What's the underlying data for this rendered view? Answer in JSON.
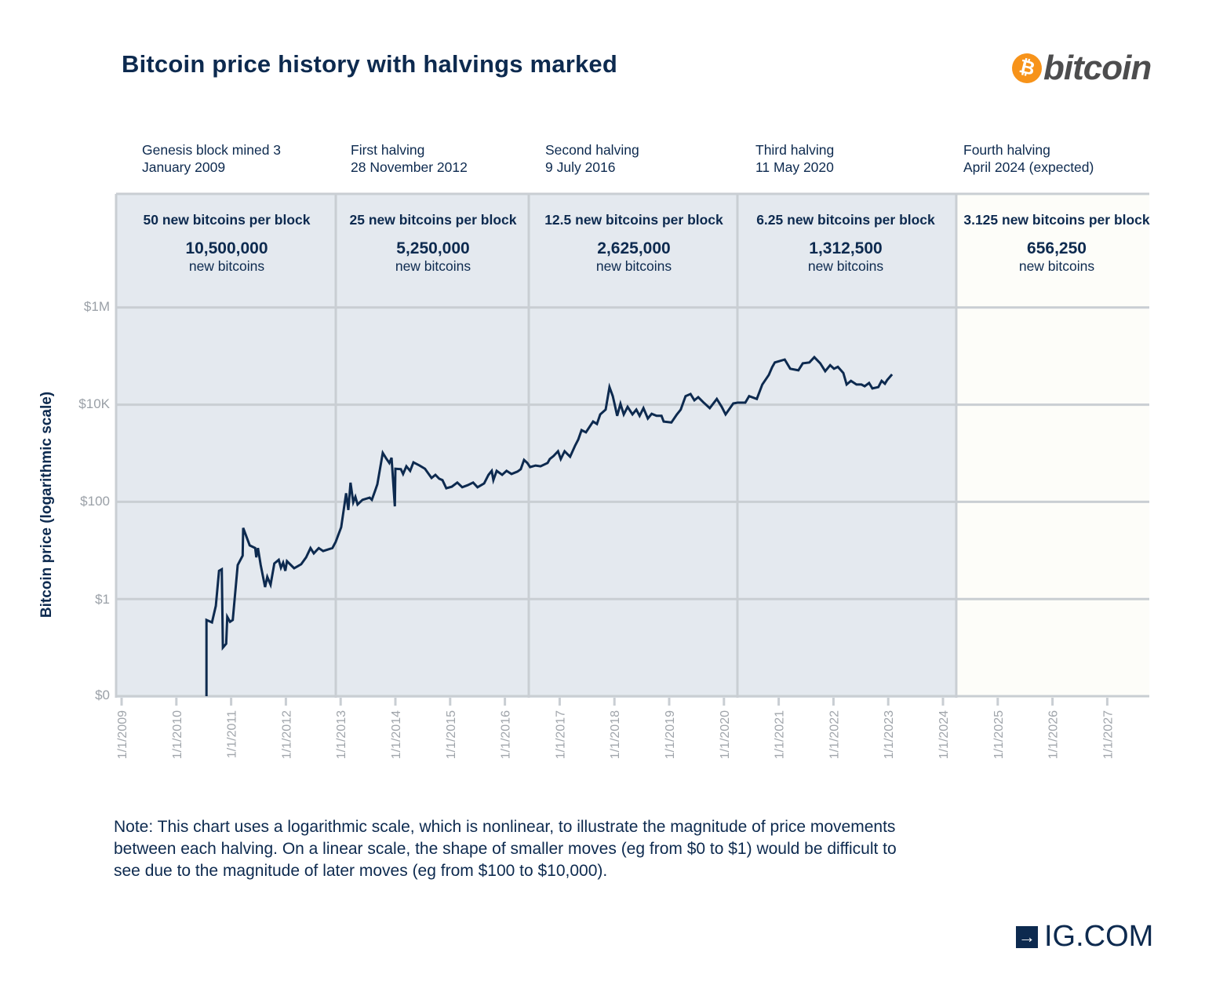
{
  "title": "Bitcoin price history with halvings marked",
  "logos": {
    "bitcoin": "bitcoin",
    "bitcoin_symbol": "₿",
    "ig": "IG.COM"
  },
  "halvings": [
    {
      "line1": "Genesis block mined 3",
      "line2": "January 2009",
      "reward": "50 new bitcoins per block",
      "new_coins": "10,500,000",
      "new_label": "new bitcoins"
    },
    {
      "line1": "First halving",
      "line2": "28 November 2012",
      "reward": "25 new bitcoins per block",
      "new_coins": "5,250,000",
      "new_label": "new bitcoins"
    },
    {
      "line1": "Second halving",
      "line2": "9 July 2016",
      "reward": "12.5 new bitcoins per block",
      "new_coins": "2,625,000",
      "new_label": "new bitcoins"
    },
    {
      "line1": "Third halving",
      "line2": "11 May 2020",
      "reward": "6.25 new bitcoins per block",
      "new_coins": "1,312,500",
      "new_label": "new bitcoins"
    },
    {
      "line1": "Fourth halving",
      "line2": "April 2024 (expected)",
      "reward": "3.125 new bitcoins per block",
      "new_coins": "656,250",
      "new_label": "new bitcoins"
    }
  ],
  "note": "Note: This chart uses a logarithmic scale, which is nonlinear, to illustrate the magnitude of price movements between each halving. On a linear scale, the shape of smaller moves (eg from $0 to $1) would be difficult to see due to the magnitude of later moves (eg from $100 to $10,000).",
  "colors": {
    "line": "#0d2a4f",
    "shade": "#e4e9ef",
    "future": "#fdfdf9",
    "grid": "#c9ced3",
    "bitcoin_orange": "#f7931a"
  },
  "chart_data": {
    "type": "line",
    "title": "Bitcoin price history with halvings marked",
    "xlabel": "",
    "ylabel": "Bitcoin price (logarithmic scale)",
    "yscale": "log",
    "ylim": [
      0.01,
      1000000
    ],
    "xlim": [
      2009,
      2027
    ],
    "yticks": [
      {
        "value": 0.01,
        "label": "$0"
      },
      {
        "value": 1,
        "label": "$1"
      },
      {
        "value": 100,
        "label": "$100"
      },
      {
        "value": 10000,
        "label": "$10K"
      },
      {
        "value": 1000000,
        "label": "$1M"
      }
    ],
    "xticks": [
      {
        "value": 2009,
        "label": "1/1/2009"
      },
      {
        "value": 2010,
        "label": "1/1/2010"
      },
      {
        "value": 2011,
        "label": "1/1/2011"
      },
      {
        "value": 2012,
        "label": "1/1/2012"
      },
      {
        "value": 2013,
        "label": "1/1/2013"
      },
      {
        "value": 2014,
        "label": "1/1/2014"
      },
      {
        "value": 2015,
        "label": "1/1/2015"
      },
      {
        "value": 2016,
        "label": "1/1/2016"
      },
      {
        "value": 2017,
        "label": "1/1/2017"
      },
      {
        "value": 2018,
        "label": "1/1/2018"
      },
      {
        "value": 2019,
        "label": "1/1/2019"
      },
      {
        "value": 2020,
        "label": "1/1/2020"
      },
      {
        "value": 2021,
        "label": "1/1/2021"
      },
      {
        "value": 2022,
        "label": "1/1/2022"
      },
      {
        "value": 2023,
        "label": "1/1/2023"
      },
      {
        "value": 2024,
        "label": "1/1/2024"
      },
      {
        "value": 2025,
        "label": "1/1/2025"
      },
      {
        "value": 2026,
        "label": "1/1/2026"
      },
      {
        "value": 2027,
        "label": "1/1/2027"
      }
    ],
    "halving_dates": [
      2009.0,
      2012.91,
      2016.52,
      2020.36,
      2024.3
    ],
    "grid": true,
    "series": [
      {
        "name": "Bitcoin price (USD)",
        "points": [
          [
            2010.55,
            0.01
          ],
          [
            2010.55,
            0.37
          ],
          [
            2010.65,
            0.33
          ],
          [
            2010.72,
            0.72
          ],
          [
            2010.78,
            3.8
          ],
          [
            2010.83,
            4.1
          ],
          [
            2010.85,
            0.1
          ],
          [
            2010.91,
            0.12
          ],
          [
            2010.93,
            0.43
          ],
          [
            2010.98,
            0.34
          ],
          [
            2011.03,
            0.37
          ],
          [
            2011.12,
            5
          ],
          [
            2011.21,
            7.8
          ],
          [
            2011.22,
            29
          ],
          [
            2011.34,
            12.7
          ],
          [
            2011.44,
            11.2
          ],
          [
            2011.46,
            7.2
          ],
          [
            2011.49,
            11.2
          ],
          [
            2011.54,
            5
          ],
          [
            2011.62,
            1.76
          ],
          [
            2011.66,
            2.85
          ],
          [
            2011.72,
            1.97
          ],
          [
            2011.79,
            5.4
          ],
          [
            2011.87,
            6.4
          ],
          [
            2011.91,
            4.4
          ],
          [
            2011.95,
            5.6
          ],
          [
            2011.99,
            3.8
          ],
          [
            2012.02,
            6
          ],
          [
            2012.15,
            4.3
          ],
          [
            2012.28,
            5.2
          ],
          [
            2012.37,
            7.2
          ],
          [
            2012.45,
            11.2
          ],
          [
            2012.51,
            8.7
          ],
          [
            2012.6,
            11.2
          ],
          [
            2012.68,
            9.7
          ],
          [
            2012.85,
            11.2
          ],
          [
            2012.91,
            15
          ],
          [
            2013.01,
            30
          ],
          [
            2013.1,
            150
          ],
          [
            2013.14,
            68
          ],
          [
            2013.18,
            248
          ],
          [
            2013.23,
            98
          ],
          [
            2013.27,
            127
          ],
          [
            2013.31,
            88
          ],
          [
            2013.4,
            110
          ],
          [
            2013.53,
            122
          ],
          [
            2013.57,
            110
          ],
          [
            2013.63,
            170
          ],
          [
            2013.67,
            230
          ],
          [
            2013.77,
            1020
          ],
          [
            2013.83,
            790
          ],
          [
            2013.89,
            630
          ],
          [
            2013.93,
            810
          ],
          [
            2013.99,
            81
          ],
          [
            2014.0,
            480
          ],
          [
            2014.1,
            470
          ],
          [
            2014.14,
            375
          ],
          [
            2014.2,
            540
          ],
          [
            2014.27,
            435
          ],
          [
            2014.33,
            650
          ],
          [
            2014.44,
            560
          ],
          [
            2014.54,
            480
          ],
          [
            2014.66,
            310
          ],
          [
            2014.73,
            360
          ],
          [
            2014.8,
            300
          ],
          [
            2014.86,
            280
          ],
          [
            2014.93,
            190
          ],
          [
            2015.03,
            205
          ],
          [
            2015.13,
            250
          ],
          [
            2015.22,
            200
          ],
          [
            2015.32,
            220
          ],
          [
            2015.42,
            250
          ],
          [
            2015.5,
            200
          ],
          [
            2015.62,
            240
          ],
          [
            2015.7,
            360
          ],
          [
            2015.76,
            435
          ],
          [
            2015.79,
            280
          ],
          [
            2015.85,
            435
          ],
          [
            2015.95,
            360
          ],
          [
            2016.03,
            435
          ],
          [
            2016.12,
            375
          ],
          [
            2016.23,
            420
          ],
          [
            2016.29,
            470
          ],
          [
            2016.35,
            730
          ],
          [
            2016.41,
            630
          ],
          [
            2016.46,
            520
          ],
          [
            2016.56,
            560
          ],
          [
            2016.65,
            540
          ],
          [
            2016.78,
            630
          ],
          [
            2016.82,
            760
          ],
          [
            2016.89,
            880
          ],
          [
            2016.97,
            1100
          ],
          [
            2017.02,
            760
          ],
          [
            2017.09,
            1100
          ],
          [
            2017.19,
            850
          ],
          [
            2017.28,
            1420
          ],
          [
            2017.34,
            1920
          ],
          [
            2017.4,
            3000
          ],
          [
            2017.48,
            2700
          ],
          [
            2017.61,
            4500
          ],
          [
            2017.68,
            4000
          ],
          [
            2017.74,
            6300
          ],
          [
            2017.84,
            7900
          ],
          [
            2017.91,
            23000
          ],
          [
            2017.97,
            15000
          ],
          [
            2018.01,
            9500
          ],
          [
            2018.05,
            5900
          ],
          [
            2018.11,
            10400
          ],
          [
            2018.17,
            6300
          ],
          [
            2018.24,
            9000
          ],
          [
            2018.33,
            6300
          ],
          [
            2018.4,
            7900
          ],
          [
            2018.46,
            5900
          ],
          [
            2018.53,
            8500
          ],
          [
            2018.61,
            5200
          ],
          [
            2018.68,
            6500
          ],
          [
            2018.77,
            5900
          ],
          [
            2018.86,
            5900
          ],
          [
            2018.9,
            4500
          ],
          [
            2019.04,
            4300
          ],
          [
            2019.14,
            6300
          ],
          [
            2019.21,
            7900
          ],
          [
            2019.3,
            15000
          ],
          [
            2019.39,
            16600
          ],
          [
            2019.46,
            12300
          ],
          [
            2019.53,
            14300
          ],
          [
            2019.62,
            11300
          ],
          [
            2019.74,
            8500
          ],
          [
            2019.87,
            13100
          ],
          [
            2019.96,
            9000
          ],
          [
            2020.03,
            6300
          ],
          [
            2020.17,
            10600
          ],
          [
            2020.25,
            11000
          ],
          [
            2020.39,
            11000
          ],
          [
            2020.46,
            15000
          ],
          [
            2020.6,
            13100
          ],
          [
            2020.7,
            26000
          ],
          [
            2020.82,
            41000
          ],
          [
            2020.88,
            59000
          ],
          [
            2020.93,
            74000
          ],
          [
            2021.11,
            85000
          ],
          [
            2021.21,
            55000
          ],
          [
            2021.36,
            51000
          ],
          [
            2021.44,
            71000
          ],
          [
            2021.56,
            74000
          ],
          [
            2021.65,
            95000
          ],
          [
            2021.76,
            71000
          ],
          [
            2021.85,
            49000
          ],
          [
            2021.94,
            65000
          ],
          [
            2022.01,
            55000
          ],
          [
            2022.08,
            60000
          ],
          [
            2022.18,
            45000
          ],
          [
            2022.24,
            26000
          ],
          [
            2022.32,
            31000
          ],
          [
            2022.42,
            26000
          ],
          [
            2022.51,
            26000
          ],
          [
            2022.57,
            24000
          ],
          [
            2022.65,
            28000
          ],
          [
            2022.71,
            21600
          ],
          [
            2022.82,
            23000
          ],
          [
            2022.88,
            31000
          ],
          [
            2022.94,
            27000
          ],
          [
            2022.98,
            32000
          ],
          [
            2023.07,
            42000
          ]
        ]
      }
    ]
  }
}
